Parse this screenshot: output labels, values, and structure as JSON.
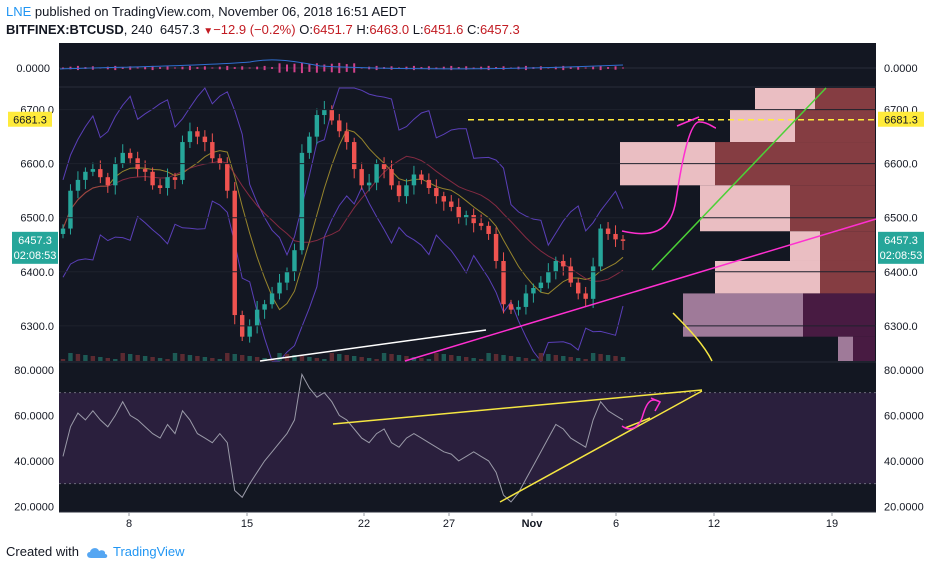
{
  "header": {
    "author": "LNE",
    "published_text": "published on TradingView.com, November 06, 2018 16:51 AEDT",
    "symbol": "BITFINEX:BTCUSD",
    "interval": "240",
    "last": "6457.3",
    "change": "−12.9 (−0.2%)",
    "o_label": "O:",
    "o": "6451.7",
    "h_label": "H:",
    "h": "6463.0",
    "l_label": "L:",
    "l": "6451.6",
    "c_label": "C:",
    "c": "6457.3"
  },
  "footer": {
    "created_with": "Created with",
    "brand": "TradingView"
  },
  "colors": {
    "background": "#131722",
    "up": "#26a69a",
    "down": "#ef5350",
    "rsi_line": "#9a9aa8",
    "rsi_band": "#2a1f3d",
    "trend_yellow": "#f5e642",
    "trend_magenta": "#ff2fd0",
    "trend_green": "#4cd137",
    "level_yellow": "#ffeb3b",
    "bollinger": "#5a3fb8"
  },
  "chart_data": [
    {
      "type": "candlestick",
      "name": "BITFINEX:BTCUSD 240",
      "x_tick_labels": [
        "8",
        "15",
        "22",
        "27",
        "Nov",
        "6",
        "12",
        "19"
      ],
      "y_tick_labels": [
        "6700.0",
        "6600.0",
        "6500.0",
        "6400.0",
        "6300.0"
      ],
      "ylim": [
        6235,
        6740
      ],
      "price_label": "6457.3",
      "countdown_label": "02:08:53",
      "level_label": "6681.3",
      "level_value": 6681.3,
      "closes": [
        6480,
        6550,
        6570,
        6585,
        6590,
        6575,
        6560,
        6600,
        6620,
        6610,
        6590,
        6585,
        6560,
        6555,
        6575,
        6570,
        6640,
        6660,
        6650,
        6640,
        6610,
        6600,
        6550,
        6320,
        6280,
        6300,
        6330,
        6340,
        6360,
        6380,
        6400,
        6440,
        6620,
        6650,
        6690,
        6700,
        6680,
        6660,
        6640,
        6590,
        6560,
        6565,
        6600,
        6590,
        6560,
        6540,
        6560,
        6580,
        6570,
        6555,
        6540,
        6530,
        6520,
        6500,
        6505,
        6490,
        6485,
        6470,
        6420,
        6340,
        6330,
        6335,
        6360,
        6370,
        6380,
        6400,
        6420,
        6410,
        6380,
        6360,
        6350,
        6410,
        6480,
        6470,
        6460,
        6457.3
      ],
      "volume_bars": "small, unlabeled",
      "annotations": [
        {
          "kind": "horizontal-dashed-line",
          "value": 6681.3,
          "color": "yellow"
        },
        {
          "kind": "trendline",
          "color": "magenta"
        },
        {
          "kind": "trendline",
          "color": "green"
        },
        {
          "kind": "trendline",
          "color": "white"
        },
        {
          "kind": "curve",
          "color": "magenta"
        },
        {
          "kind": "curve",
          "color": "yellow"
        }
      ],
      "volume_profile": [
        {
          "price_from": 6700,
          "price_to": 6740,
          "up": 60,
          "down": 60
        },
        {
          "price_from": 6640,
          "price_to": 6700,
          "up": 65,
          "down": 80
        },
        {
          "price_from": 6560,
          "price_to": 6640,
          "up": 95,
          "down": 160
        },
        {
          "price_from": 6475,
          "price_to": 6560,
          "up": 90,
          "down": 85
        },
        {
          "price_from": 6420,
          "price_to": 6475,
          "up": 30,
          "down": 55
        },
        {
          "price_from": 6360,
          "price_to": 6420,
          "up": 105,
          "down": 55
        },
        {
          "price_from": 6280,
          "price_to": 6360,
          "up": 120,
          "down": 72
        },
        {
          "price_from": 6235,
          "price_to": 6280,
          "up": 15,
          "down": 22
        }
      ]
    },
    {
      "type": "line",
      "name": "MACD",
      "y_tick_labels": [
        "0.0000"
      ]
    },
    {
      "type": "line",
      "name": "RSI",
      "y_tick_labels": [
        "80.0000",
        "60.0000",
        "40.0000",
        "20.0000"
      ],
      "ylim": [
        18,
        83
      ],
      "band": [
        30,
        70
      ],
      "values": [
        42,
        55,
        61,
        58,
        62,
        58,
        55,
        60,
        66,
        60,
        58,
        55,
        52,
        50,
        56,
        52,
        62,
        58,
        52,
        50,
        48,
        52,
        48,
        27,
        24,
        30,
        35,
        40,
        44,
        48,
        52,
        58,
        78,
        72,
        68,
        70,
        66,
        60,
        58,
        54,
        50,
        48,
        52,
        54,
        48,
        46,
        50,
        52,
        50,
        48,
        46,
        44,
        43,
        40,
        42,
        44,
        42,
        40,
        35,
        25,
        22,
        26,
        32,
        38,
        44,
        50,
        56,
        54,
        50,
        48,
        46,
        58,
        66,
        62,
        60,
        58
      ],
      "annotations": [
        {
          "kind": "trendline",
          "color": "yellow"
        },
        {
          "kind": "trendline",
          "color": "yellow"
        },
        {
          "kind": "trendline",
          "color": "yellow"
        },
        {
          "kind": "curve",
          "color": "magenta"
        }
      ]
    }
  ]
}
